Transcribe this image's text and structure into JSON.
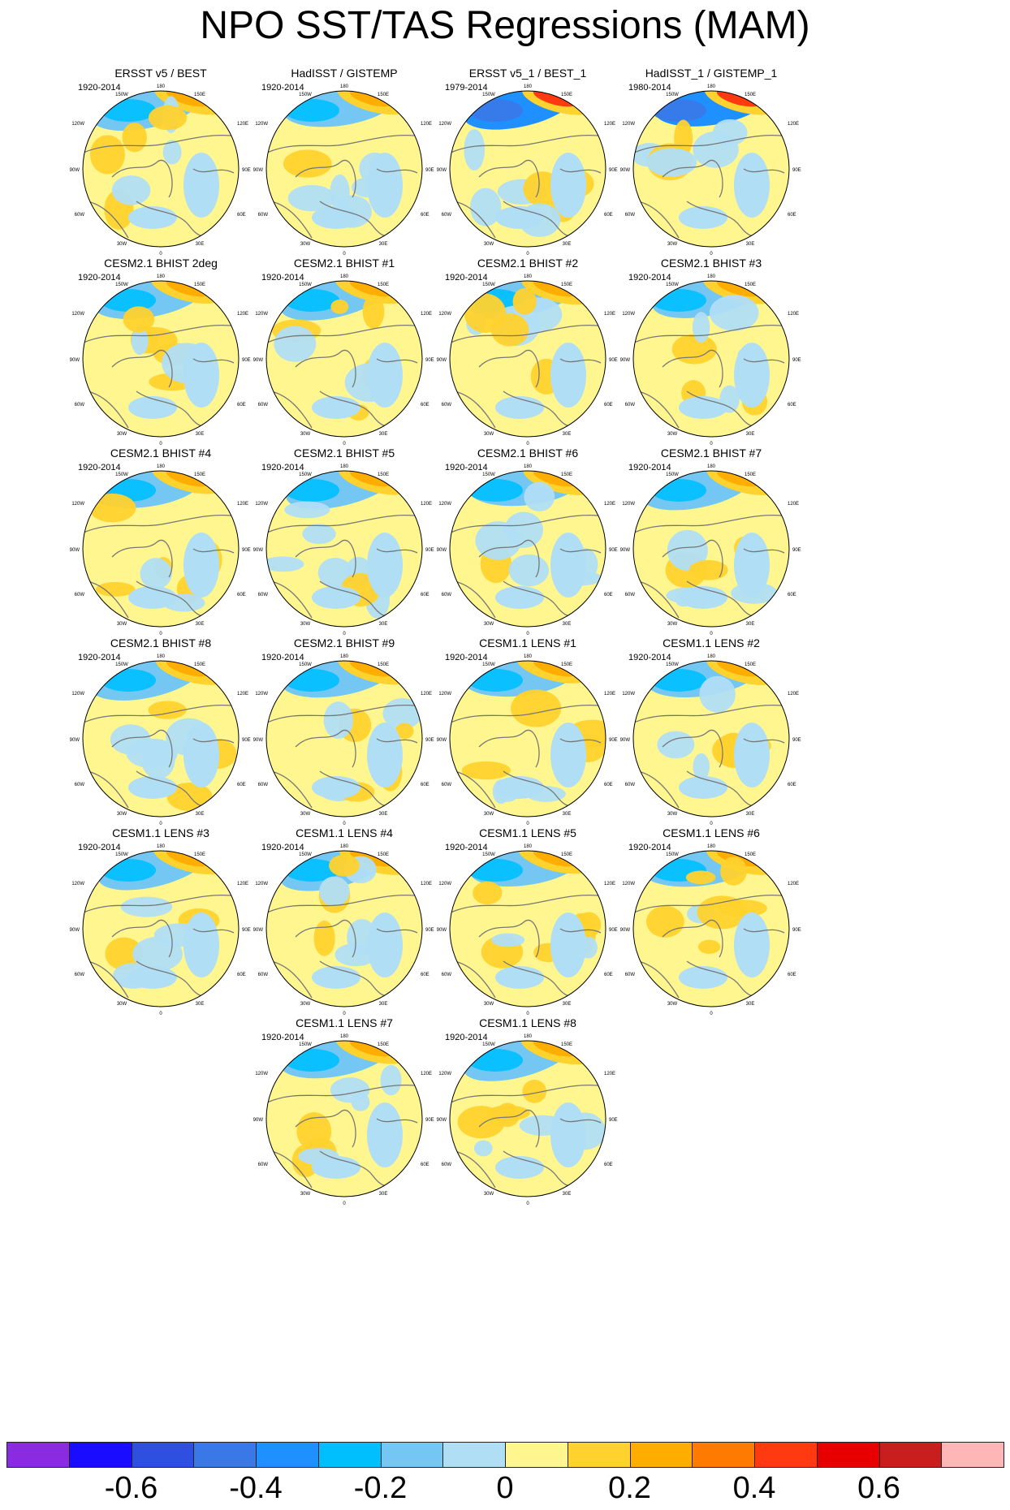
{
  "title": "NPO SST/TAS Regressions (MAM)",
  "lon_labels": {
    "top": "180",
    "tl": "150W",
    "tr": "150E",
    "ul": "120W",
    "ur": "120E",
    "l": "90W",
    "r": "90E",
    "ll": "60W",
    "lr": "60E",
    "bl": "30W",
    "br": "30E",
    "bottom": "0"
  },
  "panels": [
    {
      "title": "ERSST v5 / BEST",
      "period": "1920-2014",
      "pattern": "obs"
    },
    {
      "title": "HadISST / GISTEMP",
      "period": "1920-2014",
      "pattern": "obs"
    },
    {
      "title": "ERSST v5_1 / BEST_1",
      "period": "1979-2014",
      "pattern": "obs_strong"
    },
    {
      "title": "HadISST_1 / GISTEMP_1",
      "period": "1980-2014",
      "pattern": "obs_strong"
    },
    {
      "title": "CESM2.1 BHIST 2deg",
      "period": "1920-2014",
      "pattern": "model"
    },
    {
      "title": "CESM2.1 BHIST #1",
      "period": "1920-2014",
      "pattern": "model"
    },
    {
      "title": "CESM2.1 BHIST #2",
      "period": "1920-2014",
      "pattern": "model"
    },
    {
      "title": "CESM2.1 BHIST #3",
      "period": "1920-2014",
      "pattern": "model"
    },
    {
      "title": "CESM2.1 BHIST #4",
      "period": "1920-2014",
      "pattern": "model"
    },
    {
      "title": "CESM2.1 BHIST #5",
      "period": "1920-2014",
      "pattern": "model"
    },
    {
      "title": "CESM2.1 BHIST #6",
      "period": "1920-2014",
      "pattern": "model"
    },
    {
      "title": "CESM2.1 BHIST #7",
      "period": "1920-2014",
      "pattern": "model"
    },
    {
      "title": "CESM2.1 BHIST #8",
      "period": "1920-2014",
      "pattern": "model"
    },
    {
      "title": "CESM2.1 BHIST #9",
      "period": "1920-2014",
      "pattern": "model"
    },
    {
      "title": "CESM1.1 LENS #1",
      "period": "1920-2014",
      "pattern": "model"
    },
    {
      "title": "CESM1.1 LENS #2",
      "period": "1920-2014",
      "pattern": "model"
    },
    {
      "title": "CESM1.1 LENS #3",
      "period": "1920-2014",
      "pattern": "model"
    },
    {
      "title": "CESM1.1 LENS #4",
      "period": "1920-2014",
      "pattern": "model"
    },
    {
      "title": "CESM1.1 LENS #5",
      "period": "1920-2014",
      "pattern": "model"
    },
    {
      "title": "CESM1.1 LENS #6",
      "period": "1920-2014",
      "pattern": "model"
    },
    {
      "title": "CESM1.1 LENS #7",
      "period": "1920-2014",
      "pattern": "model"
    },
    {
      "title": "CESM1.1 LENS #8",
      "period": "1920-2014",
      "pattern": "model"
    }
  ],
  "colorbar": {
    "colors": [
      "#8a2be2",
      "#1a0dff",
      "#2f4fe0",
      "#3a78e8",
      "#1e90ff",
      "#00bfff",
      "#73c7f2",
      "#b0def5",
      "#fff68f",
      "#ffd22e",
      "#ffad00",
      "#ff7a00",
      "#ff3a10",
      "#e80000",
      "#c81e1e",
      "#ffb6b6"
    ],
    "labels": [
      "-0.6",
      "-0.4",
      "-0.2",
      "0",
      "0.2",
      "0.4",
      "0.6"
    ]
  }
}
